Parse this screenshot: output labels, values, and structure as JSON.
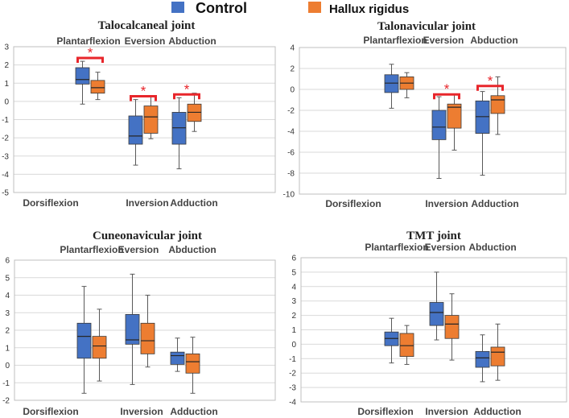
{
  "legend": [
    {
      "name": "Control",
      "color": "#4472C4"
    },
    {
      "name": "Hallux rigidus",
      "color": "#ED7D31"
    }
  ],
  "colors": {
    "control": "#4472C4",
    "hallux": "#ED7D31",
    "significance": "#E8262B",
    "whisker": "#595959"
  },
  "chart_data": [
    {
      "type": "boxplot",
      "title": "Talocalcaneal joint",
      "ylim": [
        -5,
        3
      ],
      "yticks": [
        3,
        2,
        1,
        0,
        -1,
        -2,
        -3,
        -4,
        -5
      ],
      "top_labels": [
        "Plantarflexion",
        "Eversion",
        "Abduction"
      ],
      "bottom_labels": [
        "Dorsiflexion",
        "Inversion",
        "Adduction"
      ],
      "groups": [
        {
          "control": {
            "min": -0.15,
            "q1": 0.95,
            "median": 1.2,
            "q3": 1.85,
            "max": 2.2
          },
          "hallux": {
            "min": 0.1,
            "q1": 0.45,
            "median": 0.75,
            "q3": 1.15,
            "max": 1.6
          },
          "significant": true,
          "marker": "*"
        },
        {
          "control": {
            "min": -3.5,
            "q1": -2.35,
            "median": -1.9,
            "q3": -0.8,
            "max": 0.1
          },
          "hallux": {
            "min": -2.05,
            "q1": -1.75,
            "median": -0.85,
            "q3": -0.25,
            "max": 0.3
          },
          "significant": true,
          "marker": "*"
        },
        {
          "control": {
            "min": -3.7,
            "q1": -2.35,
            "median": -1.45,
            "q3": -0.6,
            "max": 0.2
          },
          "hallux": {
            "min": -1.65,
            "q1": -1.1,
            "median": -0.6,
            "q3": -0.15,
            "max": 0.45
          },
          "significant": true,
          "marker": "*"
        }
      ]
    },
    {
      "type": "boxplot",
      "title": "Talonavicular joint",
      "ylim": [
        -10,
        4
      ],
      "yticks": [
        4,
        2,
        0,
        -2,
        -4,
        -6,
        -8,
        -10
      ],
      "top_labels": [
        "Plantarflexion",
        "Eversion",
        "Abduction"
      ],
      "bottom_labels": [
        "Dorsiflexion",
        "Inversion",
        "Adduction"
      ],
      "groups": [
        {
          "control": {
            "min": -1.8,
            "q1": -0.3,
            "median": 0.6,
            "q3": 1.4,
            "max": 2.4
          },
          "hallux": {
            "min": -0.8,
            "q1": 0.0,
            "median": 0.6,
            "q3": 1.2,
            "max": 1.6
          },
          "significant": false,
          "marker": ""
        },
        {
          "control": {
            "min": -8.5,
            "q1": -4.8,
            "median": -3.6,
            "q3": -2.0,
            "max": -0.7
          },
          "hallux": {
            "min": -5.8,
            "q1": -3.7,
            "median": -1.7,
            "q3": -1.4,
            "max": -0.5
          },
          "significant": true,
          "marker": "*"
        },
        {
          "control": {
            "min": -8.2,
            "q1": -4.2,
            "median": -2.6,
            "q3": -1.1,
            "max": -0.2
          },
          "hallux": {
            "min": -4.3,
            "q1": -2.3,
            "median": -1.0,
            "q3": -0.6,
            "max": 1.2
          },
          "significant": true,
          "marker": "*"
        }
      ]
    },
    {
      "type": "boxplot",
      "title": "Cuneonavicular joint",
      "ylim": [
        -2,
        6
      ],
      "yticks": [
        6,
        5,
        4,
        3,
        2,
        1,
        0,
        -1,
        -2
      ],
      "top_labels": [
        "Plantarflexion",
        "Eversion",
        "Abduction"
      ],
      "bottom_labels": [
        "Dorsiflexion",
        "Inversion",
        "Adduction"
      ],
      "groups": [
        {
          "control": {
            "min": -1.6,
            "q1": 0.4,
            "median": 1.65,
            "q3": 2.4,
            "max": 4.5
          },
          "hallux": {
            "min": -0.9,
            "q1": 0.4,
            "median": 1.1,
            "q3": 1.65,
            "max": 3.2
          },
          "significant": false,
          "marker": ""
        },
        {
          "control": {
            "min": -1.1,
            "q1": 1.2,
            "median": 1.45,
            "q3": 2.9,
            "max": 5.2
          },
          "hallux": {
            "min": -0.1,
            "q1": 0.65,
            "median": 1.4,
            "q3": 2.4,
            "max": 4.0
          },
          "significant": false,
          "marker": ""
        },
        {
          "control": {
            "min": -0.35,
            "q1": 0.05,
            "median": 0.55,
            "q3": 0.75,
            "max": 1.55
          },
          "hallux": {
            "min": -1.6,
            "q1": -0.45,
            "median": 0.2,
            "q3": 0.65,
            "max": 1.6
          },
          "significant": false,
          "marker": ""
        }
      ]
    },
    {
      "type": "boxplot",
      "title": "TMT joint",
      "ylim": [
        -4,
        6
      ],
      "yticks": [
        6,
        5,
        4,
        3,
        2,
        1,
        0,
        -1,
        -2,
        -3,
        -4
      ],
      "top_labels": [
        "Plantarflexion",
        "Eversion",
        "Abduction"
      ],
      "bottom_labels": [
        "Dorsiflexion",
        "Inversion",
        "Adduction"
      ],
      "groups": [
        {
          "control": {
            "min": -1.3,
            "q1": -0.1,
            "median": 0.4,
            "q3": 0.85,
            "max": 1.8
          },
          "hallux": {
            "min": -1.4,
            "q1": -0.85,
            "median": -0.1,
            "q3": 0.75,
            "max": 1.3
          },
          "significant": false,
          "marker": ""
        },
        {
          "control": {
            "min": 0.3,
            "q1": 1.3,
            "median": 2.2,
            "q3": 2.9,
            "max": 5.0
          },
          "hallux": {
            "min": -1.1,
            "q1": 0.4,
            "median": 1.4,
            "q3": 2.0,
            "max": 3.5
          },
          "significant": false,
          "marker": ""
        },
        {
          "control": {
            "min": -2.6,
            "q1": -1.6,
            "median": -0.95,
            "q3": -0.5,
            "max": 0.65
          },
          "hallux": {
            "min": -2.5,
            "q1": -1.5,
            "median": -0.55,
            "q3": -0.2,
            "max": 1.4
          },
          "significant": false,
          "marker": ""
        }
      ]
    }
  ]
}
